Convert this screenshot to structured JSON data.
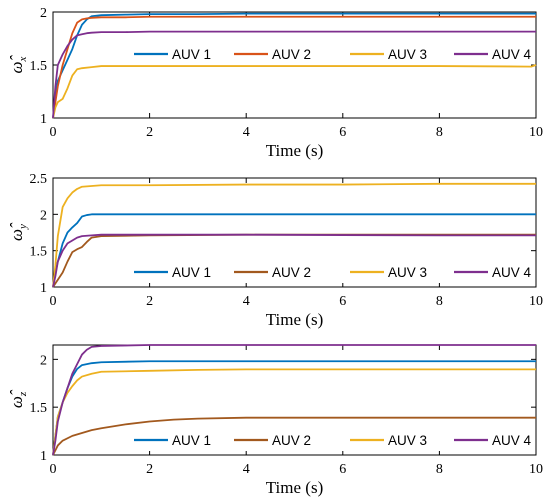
{
  "chart_data": [
    {
      "type": "line",
      "ylabel": "ω̂",
      "ylabel_sub": "x",
      "xlabel": "Time (s)",
      "xlim": [
        0,
        10
      ],
      "ylim": [
        1,
        2
      ],
      "xticks": [
        "0",
        "2",
        "4",
        "6",
        "8",
        "10"
      ],
      "yticks": [
        "1",
        "1.5",
        "2"
      ],
      "grid": false,
      "legend_position": "center",
      "series": [
        {
          "name": "AUV 1",
          "color": "#0072BD",
          "x": [
            0,
            0.05,
            0.1,
            0.2,
            0.3,
            0.4,
            0.5,
            0.6,
            0.7,
            0.8,
            1.0,
            1.5,
            2,
            3,
            4,
            6,
            8,
            10
          ],
          "y": [
            1.0,
            1.2,
            1.35,
            1.45,
            1.55,
            1.65,
            1.78,
            1.88,
            1.93,
            1.96,
            1.97,
            1.975,
            1.98,
            1.98,
            1.985,
            1.985,
            1.985,
            1.985
          ]
        },
        {
          "name": "AUV 2",
          "color": "#D95319",
          "x": [
            0,
            0.05,
            0.1,
            0.2,
            0.3,
            0.4,
            0.5,
            0.6,
            0.7,
            0.8,
            1.0,
            1.5,
            2,
            4,
            6,
            8,
            10
          ],
          "y": [
            1.0,
            1.15,
            1.3,
            1.5,
            1.65,
            1.8,
            1.9,
            1.93,
            1.94,
            1.945,
            1.95,
            1.95,
            1.955,
            1.955,
            1.955,
            1.955,
            1.955
          ]
        },
        {
          "name": "AUV 3",
          "color": "#EDB120",
          "x": [
            0,
            0.05,
            0.1,
            0.2,
            0.3,
            0.4,
            0.5,
            0.6,
            0.8,
            1.0,
            1.5,
            2,
            4,
            6,
            8,
            9.9,
            10
          ],
          "y": [
            1.0,
            1.1,
            1.15,
            1.18,
            1.28,
            1.4,
            1.46,
            1.47,
            1.48,
            1.49,
            1.49,
            1.49,
            1.49,
            1.49,
            1.49,
            1.485,
            1.5
          ]
        },
        {
          "name": "AUV 4",
          "color": "#7E2F8E",
          "x": [
            0,
            0.05,
            0.1,
            0.2,
            0.3,
            0.4,
            0.5,
            0.6,
            0.7,
            0.8,
            1.0,
            1.5,
            2,
            4,
            6,
            8,
            10
          ],
          "y": [
            1.0,
            1.3,
            1.5,
            1.6,
            1.68,
            1.74,
            1.78,
            1.79,
            1.8,
            1.805,
            1.81,
            1.81,
            1.815,
            1.815,
            1.815,
            1.815,
            1.815
          ]
        }
      ]
    },
    {
      "type": "line",
      "ylabel": "ω̂",
      "ylabel_sub": "y",
      "xlabel": "Time (s)",
      "xlim": [
        0,
        10
      ],
      "ylim": [
        1,
        2.5
      ],
      "xticks": [
        "0",
        "2",
        "4",
        "6",
        "8",
        "10"
      ],
      "yticks": [
        "1",
        "1.5",
        "2",
        "2.5"
      ],
      "grid": false,
      "legend_position": "bottom",
      "series": [
        {
          "name": "AUV 1",
          "color": "#0072BD",
          "x": [
            0,
            0.05,
            0.1,
            0.2,
            0.3,
            0.4,
            0.5,
            0.6,
            0.7,
            0.8,
            1.0,
            2,
            4,
            6,
            8,
            10
          ],
          "y": [
            1.0,
            1.2,
            1.35,
            1.6,
            1.75,
            1.82,
            1.88,
            1.97,
            1.99,
            2.0,
            2.0,
            2.0,
            2.0,
            2.0,
            2.0,
            2.0
          ]
        },
        {
          "name": "AUV 2",
          "color": "#A2591E",
          "x": [
            0,
            0.05,
            0.1,
            0.2,
            0.3,
            0.4,
            0.5,
            0.6,
            0.7,
            0.8,
            1.0,
            2,
            4,
            6,
            8,
            10
          ],
          "y": [
            1.0,
            1.05,
            1.1,
            1.2,
            1.35,
            1.48,
            1.52,
            1.55,
            1.62,
            1.68,
            1.7,
            1.71,
            1.72,
            1.72,
            1.72,
            1.72
          ]
        },
        {
          "name": "AUV 3",
          "color": "#EDB120",
          "x": [
            0,
            0.05,
            0.1,
            0.2,
            0.3,
            0.4,
            0.5,
            0.6,
            0.8,
            1.0,
            1.5,
            2,
            4,
            6,
            8,
            10
          ],
          "y": [
            1.0,
            1.3,
            1.7,
            2.1,
            2.22,
            2.3,
            2.35,
            2.38,
            2.39,
            2.4,
            2.4,
            2.4,
            2.41,
            2.41,
            2.42,
            2.42
          ]
        },
        {
          "name": "AUV 4",
          "color": "#7E2F8E",
          "x": [
            0,
            0.05,
            0.1,
            0.2,
            0.3,
            0.4,
            0.5,
            0.6,
            0.8,
            1.0,
            2,
            4,
            6,
            8,
            10
          ],
          "y": [
            1.0,
            1.15,
            1.35,
            1.5,
            1.6,
            1.64,
            1.68,
            1.7,
            1.71,
            1.72,
            1.72,
            1.72,
            1.715,
            1.71,
            1.71
          ]
        }
      ]
    },
    {
      "type": "line",
      "ylabel": "ω̂",
      "ylabel_sub": "z",
      "xlabel": "Time (s)",
      "xlim": [
        0,
        10
      ],
      "ylim": [
        1,
        2.15
      ],
      "xticks": [
        "0",
        "2",
        "4",
        "6",
        "8",
        "10"
      ],
      "yticks": [
        "1",
        "1.5",
        "2"
      ],
      "grid": false,
      "legend_position": "bottom",
      "series": [
        {
          "name": "AUV 1",
          "color": "#0072BD",
          "x": [
            0,
            0.05,
            0.1,
            0.2,
            0.3,
            0.4,
            0.5,
            0.6,
            0.8,
            1.0,
            2,
            4,
            6,
            8,
            10
          ],
          "y": [
            1.0,
            1.2,
            1.4,
            1.55,
            1.7,
            1.82,
            1.9,
            1.94,
            1.96,
            1.97,
            1.98,
            1.98,
            1.98,
            1.98,
            1.98
          ]
        },
        {
          "name": "AUV 2",
          "color": "#A2591E",
          "x": [
            0,
            0.05,
            0.1,
            0.2,
            0.4,
            0.6,
            0.8,
            1.0,
            1.5,
            2,
            2.5,
            3,
            4,
            6,
            8,
            10
          ],
          "y": [
            1.0,
            1.05,
            1.1,
            1.15,
            1.2,
            1.23,
            1.26,
            1.28,
            1.32,
            1.35,
            1.37,
            1.38,
            1.39,
            1.39,
            1.39,
            1.39
          ]
        },
        {
          "name": "AUV 3",
          "color": "#EDB120",
          "x": [
            0,
            0.05,
            0.1,
            0.2,
            0.3,
            0.4,
            0.5,
            0.6,
            0.8,
            1.0,
            2,
            3,
            4,
            6,
            8,
            10
          ],
          "y": [
            1.0,
            1.2,
            1.4,
            1.55,
            1.65,
            1.72,
            1.78,
            1.82,
            1.85,
            1.87,
            1.88,
            1.89,
            1.895,
            1.895,
            1.895,
            1.895
          ]
        },
        {
          "name": "AUV 4",
          "color": "#7E2F8E",
          "x": [
            0,
            0.05,
            0.1,
            0.2,
            0.3,
            0.4,
            0.5,
            0.6,
            0.7,
            0.8,
            1.0,
            2,
            4,
            6,
            8,
            10
          ],
          "y": [
            1.0,
            1.15,
            1.35,
            1.55,
            1.7,
            1.85,
            1.95,
            2.05,
            2.1,
            2.13,
            2.14,
            2.15,
            2.15,
            2.15,
            2.15,
            2.15
          ]
        }
      ]
    }
  ]
}
